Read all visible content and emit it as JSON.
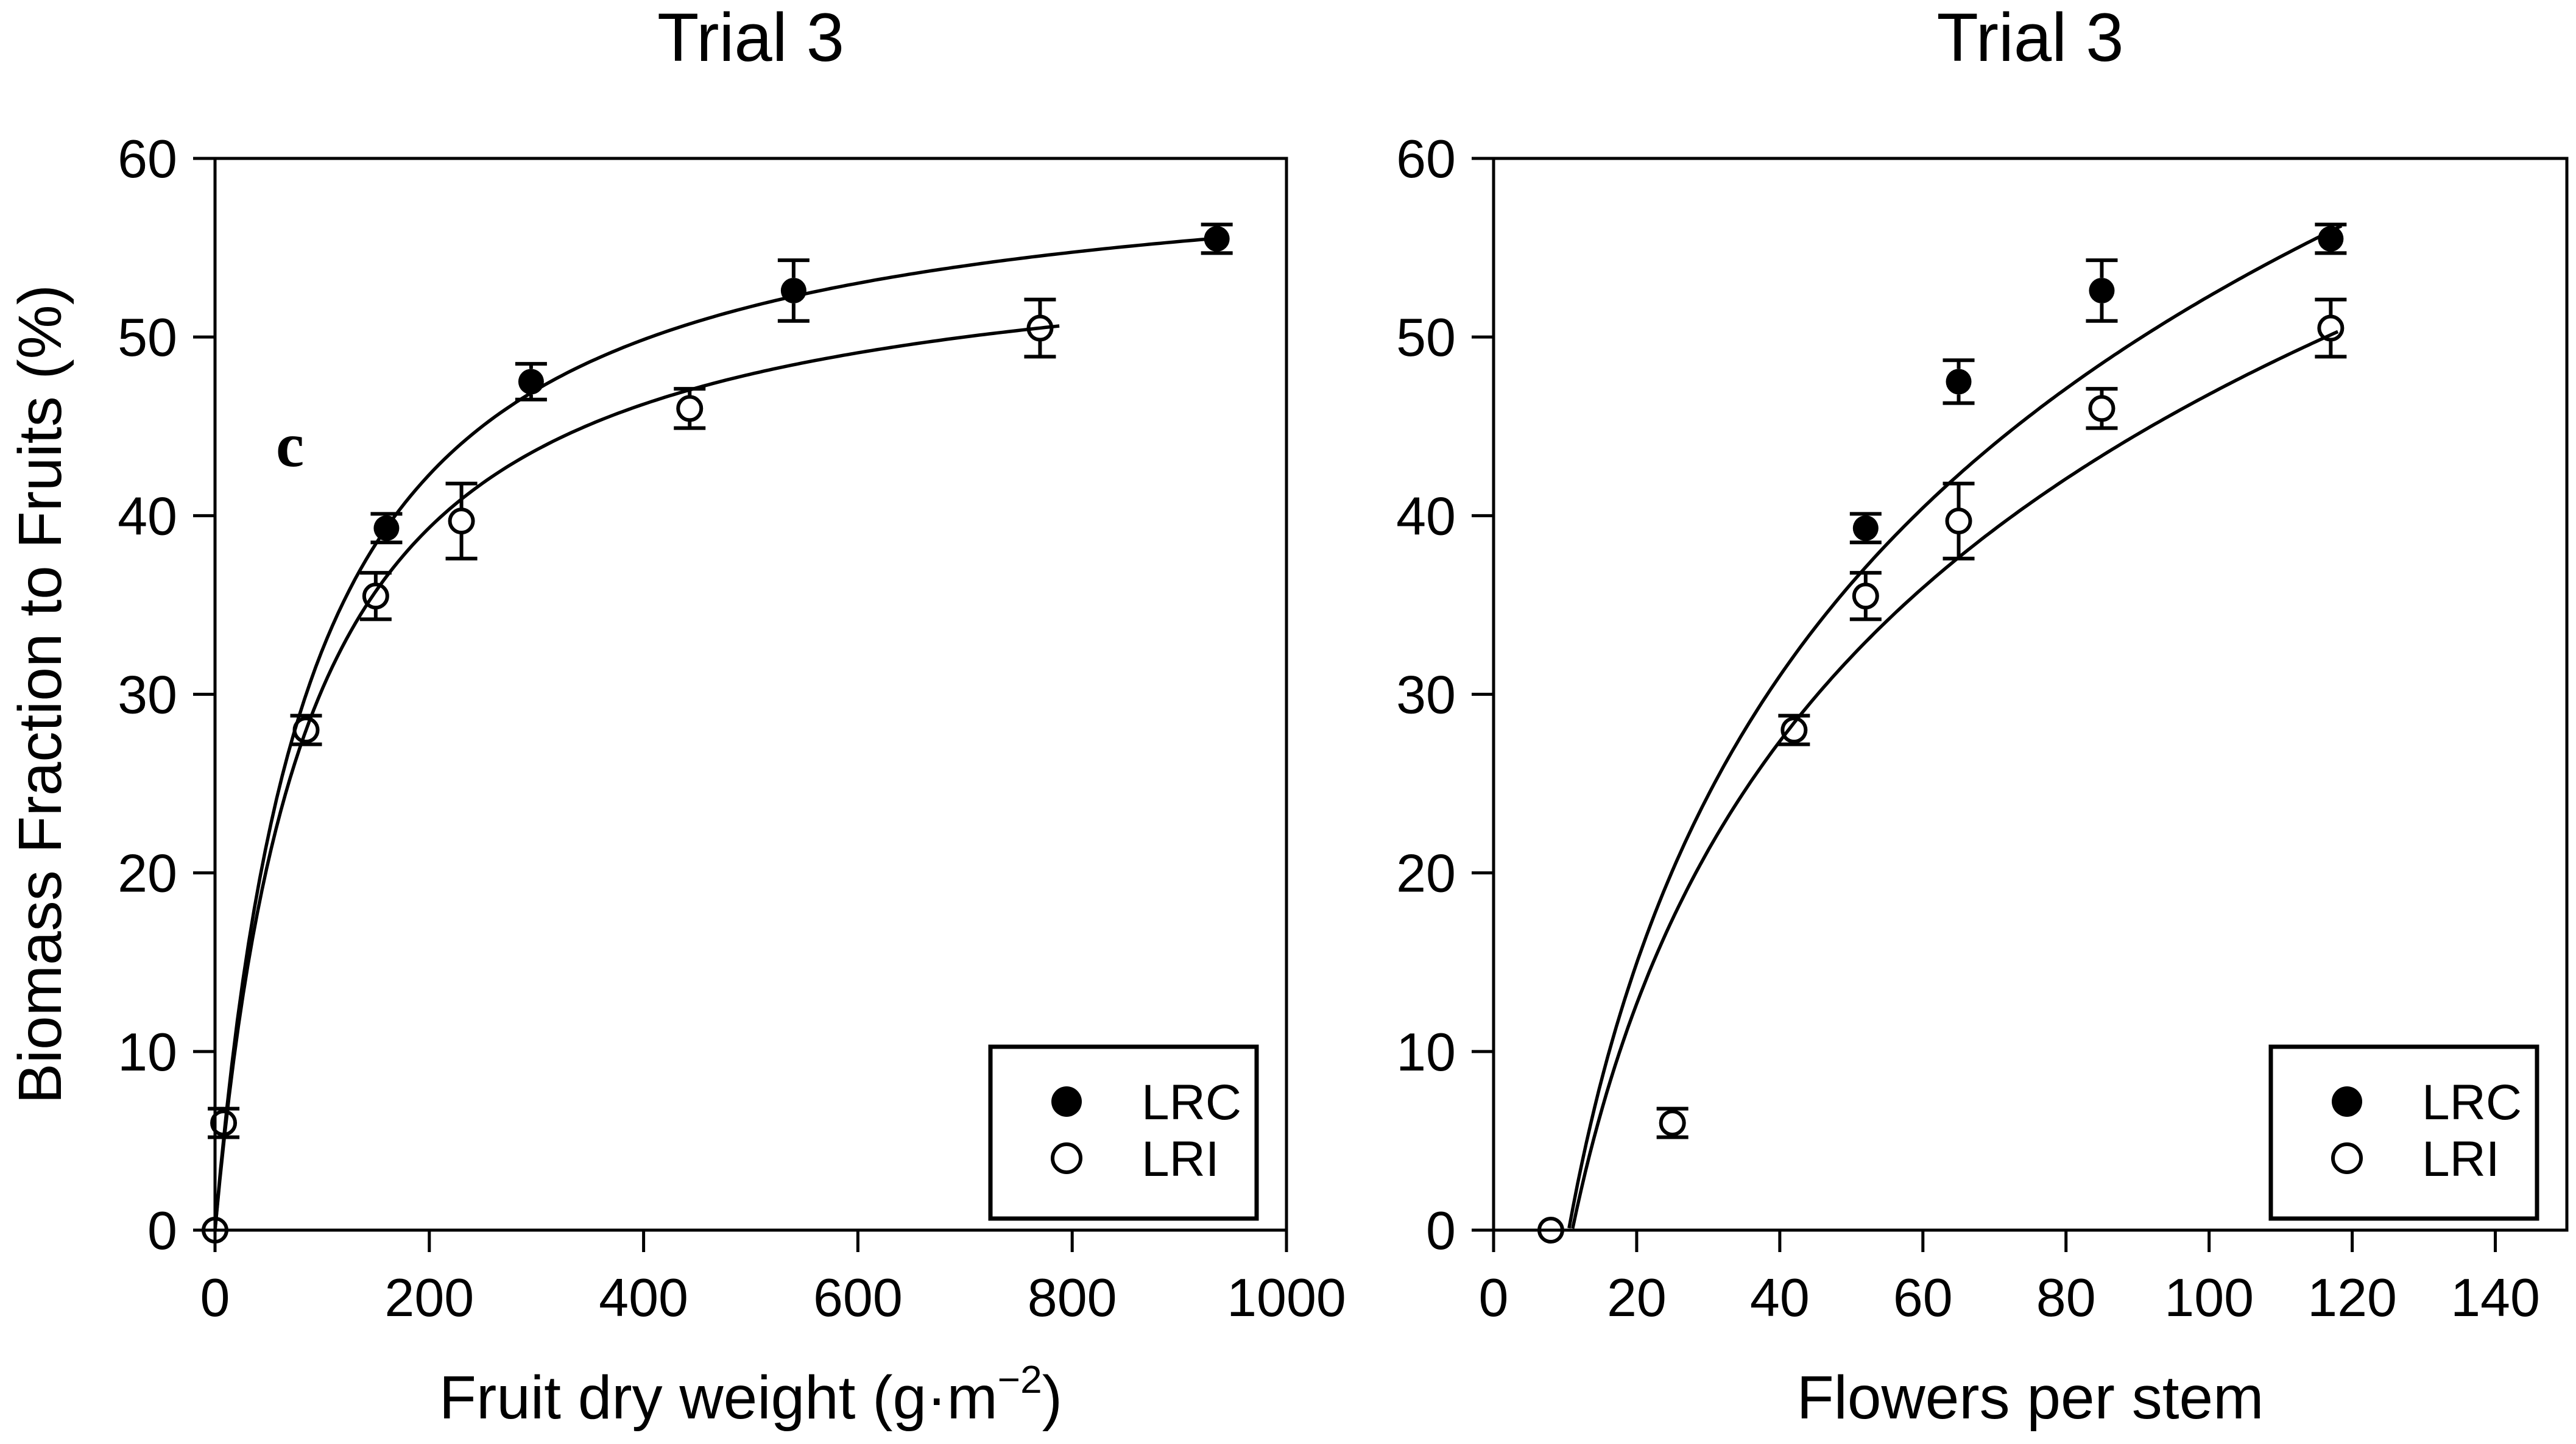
{
  "colors": {
    "foreground": "#000000",
    "background": "#ffffff"
  },
  "chart_data": [
    {
      "type": "scatter",
      "panel": "left",
      "panel_label": "c",
      "title": "Trial 3",
      "xlabel": "Fruit dry weight (g·m−2)",
      "xlabel_parts": {
        "prefix": "Fruit dry weight (g·m",
        "superscript": "−2",
        "suffix": ")"
      },
      "ylabel": "Biomass Fraction to Fruits (%)",
      "xlim": [
        0,
        1000
      ],
      "xticks": [
        0,
        200,
        400,
        600,
        800,
        1000
      ],
      "ylim": [
        0,
        60
      ],
      "yticks": [
        0,
        10,
        20,
        30,
        40,
        50,
        60
      ],
      "grid": false,
      "legend_position": "lower right",
      "legend": {
        "entries": [
          {
            "label": "LRC",
            "marker": "filled-circle"
          },
          {
            "label": "LRI",
            "marker": "open-circle"
          }
        ]
      },
      "series": [
        {
          "name": "LRC",
          "marker": "filled-circle",
          "points": [
            {
              "x": 160,
              "y": 39.3,
              "err": 0.8
            },
            {
              "x": 295,
              "y": 47.5,
              "err": 1.0
            },
            {
              "x": 540,
              "y": 52.6,
              "err": 1.7
            },
            {
              "x": 935,
              "y": 55.5,
              "err": 0.8
            }
          ],
          "fit": {
            "type": "hyperbolic",
            "formula": "y = a·x/(b+x)",
            "a": 60.7,
            "b": 87,
            "x_range": [
              0,
              940
            ]
          }
        },
        {
          "name": "LRI",
          "marker": "open-circle",
          "points": [
            {
              "x": 0,
              "y": 0,
              "err": 0
            },
            {
              "x": 8,
              "y": 6,
              "err": 0.8
            },
            {
              "x": 85,
              "y": 28,
              "err": 0.8
            },
            {
              "x": 150,
              "y": 35.5,
              "err": 1.3
            },
            {
              "x": 230,
              "y": 39.7,
              "err": 2.1
            },
            {
              "x": 443,
              "y": 46,
              "err": 1.1
            },
            {
              "x": 770,
              "y": 50.5,
              "err": 1.6
            }
          ],
          "fit": {
            "type": "hyperbolic",
            "formula": "y = a·x/(b+x)",
            "a": 56.1,
            "b": 85.3,
            "x_range": [
              0,
              788
            ]
          }
        }
      ]
    },
    {
      "type": "scatter",
      "panel": "right",
      "panel_label": "",
      "title": "Trial 3",
      "xlabel": "Flowers per stem",
      "xlabel_parts": {
        "prefix": "Flowers per stem",
        "superscript": "",
        "suffix": ""
      },
      "ylabel": "",
      "xlim": [
        0,
        150
      ],
      "xticks": [
        0,
        20,
        40,
        60,
        80,
        100,
        120,
        140
      ],
      "ylim": [
        0,
        60
      ],
      "yticks": [
        0,
        10,
        20,
        30,
        40,
        50,
        60
      ],
      "grid": false,
      "legend_position": "lower right",
      "legend": {
        "entries": [
          {
            "label": "LRC",
            "marker": "filled-circle"
          },
          {
            "label": "LRI",
            "marker": "open-circle"
          }
        ]
      },
      "series": [
        {
          "name": "LRC",
          "marker": "filled-circle",
          "points": [
            {
              "x": 52,
              "y": 39.3,
              "err": 0.8
            },
            {
              "x": 65,
              "y": 47.5,
              "err": 1.2
            },
            {
              "x": 85,
              "y": 52.6,
              "err": 1.7
            },
            {
              "x": 117,
              "y": 55.5,
              "err": 0.8
            }
          ],
          "fit": {
            "type": "log",
            "formula": "y = a·ln(x/x0)",
            "a": 23.2,
            "x0": 10.5,
            "x_range": [
              10.55,
              118.5
            ]
          }
        },
        {
          "name": "LRI",
          "marker": "open-circle",
          "points": [
            {
              "x": 8,
              "y": 0,
              "err": 0
            },
            {
              "x": 25,
              "y": 6,
              "err": 0.8
            },
            {
              "x": 42,
              "y": 28,
              "err": 0.8
            },
            {
              "x": 52,
              "y": 35.5,
              "err": 1.3
            },
            {
              "x": 65,
              "y": 39.7,
              "err": 2.1
            },
            {
              "x": 85,
              "y": 46,
              "err": 1.1
            },
            {
              "x": 117,
              "y": 50.5,
              "err": 1.6
            }
          ],
          "fit": {
            "type": "log",
            "formula": "y = a·ln(x/x0)",
            "a": 21.2,
            "x0": 11,
            "x_range": [
              11.05,
              118
            ]
          }
        }
      ]
    }
  ]
}
